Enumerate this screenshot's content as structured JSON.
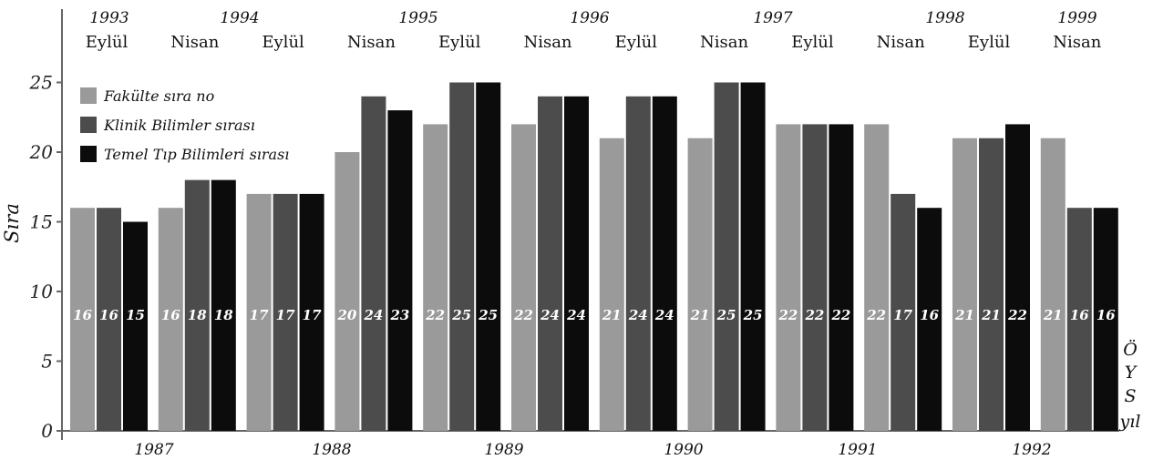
{
  "chart_data": {
    "type": "bar",
    "title": "",
    "ylabel": "Sıra",
    "ylim": [
      0,
      25
    ],
    "yticks": [
      0,
      5,
      10,
      15,
      20,
      25
    ],
    "grid": false,
    "legend_position": "top-left",
    "series": [
      {
        "name": "Fakülte sıra no",
        "color": "#9a9a9a"
      },
      {
        "name": "Klinik Bilimler sırası",
        "color": "#4c4c4c"
      },
      {
        "name": "Temel Tıp Bilimleri sırası",
        "color": "#0c0c0c"
      }
    ],
    "groups": [
      {
        "session": "Eylül",
        "values": [
          16,
          16,
          15
        ]
      },
      {
        "session": "Nisan",
        "values": [
          16,
          18,
          18
        ]
      },
      {
        "session": "Eylül",
        "values": [
          17,
          17,
          17
        ]
      },
      {
        "session": "Nisan",
        "values": [
          20,
          24,
          23
        ]
      },
      {
        "session": "Eylül",
        "values": [
          22,
          25,
          25
        ]
      },
      {
        "session": "Nisan",
        "values": [
          22,
          24,
          24
        ]
      },
      {
        "session": "Eylül",
        "values": [
          21,
          24,
          24
        ]
      },
      {
        "session": "Nisan",
        "values": [
          21,
          25,
          25
        ]
      },
      {
        "session": "Eylül",
        "values": [
          22,
          22,
          22
        ]
      },
      {
        "session": "Nisan",
        "values": [
          22,
          17,
          16
        ]
      },
      {
        "session": "Eylül",
        "values": [
          21,
          21,
          22
        ]
      },
      {
        "session": "Nisan",
        "values": [
          21,
          16,
          16
        ]
      }
    ],
    "top_years": [
      "1993",
      "1994",
      "1995",
      "1996",
      "1997",
      "1998",
      "1999"
    ],
    "bottom_years": [
      "1987",
      "1988",
      "1989",
      "1990",
      "1991",
      "1992"
    ],
    "right_label": [
      "Ö",
      "Y",
      "S",
      "yıl"
    ]
  }
}
